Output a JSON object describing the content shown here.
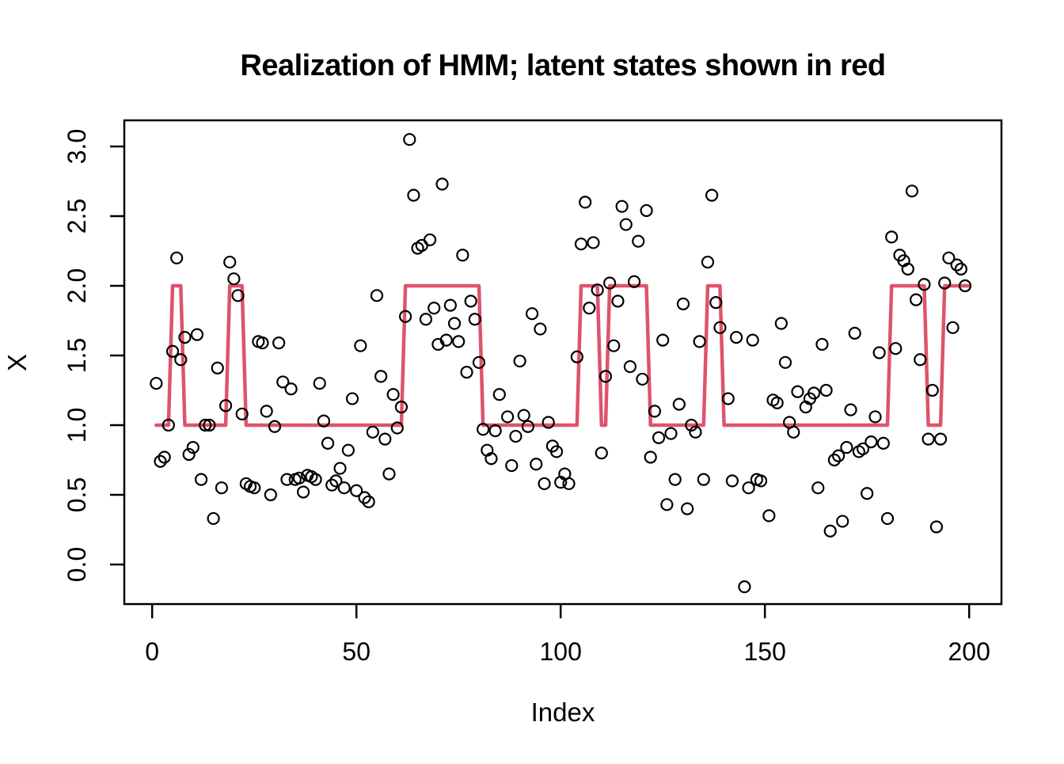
{
  "figure": {
    "background_color": "#ffffff",
    "point_color": "#000000",
    "state_line_color": "#DF536B"
  },
  "chart_data": {
    "type": "scatter",
    "title": "Realization of HMM; latent states shown in red",
    "xlabel": "Index",
    "ylabel": "X",
    "grid": false,
    "legend": "none",
    "xlim": [
      -6.8,
      207.9
    ],
    "ylim": [
      -0.28,
      3.19
    ],
    "x_ticks": [
      0,
      50,
      100,
      150,
      200
    ],
    "x_tick_labels": [
      "0",
      "50",
      "100",
      "150",
      "200"
    ],
    "y_ticks": [
      0,
      0.5,
      1,
      1.5,
      2,
      2.5,
      3
    ],
    "y_tick_labels": [
      "0.0",
      "0.5",
      "1.0",
      "1.5",
      "2.0",
      "2.5",
      "3.0"
    ],
    "series": [
      {
        "name": "observations",
        "type": "scatter",
        "marker": "open-circle",
        "color": "#000000",
        "x_start": 1,
        "note": "y values read off plot; null = point hidden under overlapping ink",
        "y": [
          1.3,
          0.74,
          0.77,
          1.0,
          1.53,
          2.2,
          1.47,
          1.63,
          0.79,
          0.84,
          1.65,
          0.61,
          1.0,
          1.0,
          0.33,
          1.41,
          0.55,
          1.14,
          2.17,
          2.05,
          1.93,
          1.08,
          0.58,
          0.56,
          0.55,
          1.6,
          1.59,
          1.1,
          0.5,
          0.99,
          1.59,
          1.31,
          0.61,
          1.26,
          0.61,
          0.62,
          0.52,
          0.64,
          0.63,
          0.61,
          1.3,
          1.03,
          0.87,
          0.57,
          0.6,
          0.69,
          0.55,
          0.82,
          1.19,
          0.53,
          1.57,
          0.48,
          0.45,
          0.95,
          1.93,
          1.35,
          0.9,
          0.65,
          1.22,
          0.98,
          1.13,
          1.78,
          3.05,
          2.65,
          2.27,
          2.29,
          1.76,
          2.33,
          1.84,
          1.58,
          2.73,
          1.61,
          1.86,
          1.73,
          1.6,
          2.22,
          1.38,
          1.89,
          1.76,
          1.45,
          0.97,
          0.82,
          0.76,
          0.96,
          1.22,
          null,
          1.06,
          0.71,
          0.92,
          1.46,
          1.07,
          0.99,
          1.8,
          0.72,
          1.69,
          0.58,
          1.02,
          0.85,
          0.81,
          0.59,
          0.65,
          0.58,
          null,
          1.49,
          2.3,
          2.6,
          1.84,
          2.31,
          1.97,
          0.8,
          1.35,
          2.02,
          1.57,
          1.89,
          2.57,
          2.44,
          1.42,
          2.03,
          2.32,
          1.33,
          2.54,
          0.77,
          1.1,
          0.91,
          1.61,
          0.43,
          0.94,
          0.61,
          1.15,
          1.87,
          0.4,
          1.0,
          0.95,
          1.6,
          0.61,
          2.17,
          2.65,
          1.88,
          1.7,
          null,
          1.19,
          0.6,
          1.63,
          null,
          -0.16,
          0.55,
          1.61,
          0.61,
          0.6,
          null,
          0.35,
          1.18,
          1.16,
          1.73,
          1.45,
          1.02,
          0.95,
          1.24,
          null,
          1.13,
          1.19,
          1.23,
          0.55,
          1.58,
          1.25,
          0.24,
          0.75,
          0.78,
          0.31,
          0.84,
          1.11,
          1.66,
          0.81,
          0.83,
          0.51,
          0.88,
          1.06,
          1.52,
          0.87,
          0.33,
          2.35,
          1.55,
          2.22,
          2.18,
          2.12,
          2.68,
          1.9,
          1.47,
          2.01,
          0.9,
          1.25,
          0.27,
          0.9,
          2.02,
          2.2,
          1.7,
          2.15,
          2.12,
          2.0,
          null
        ]
      },
      {
        "name": "latent-states",
        "type": "step-line",
        "color": "#DF536B",
        "t_start": 1,
        "t_end": 200,
        "state1_level": 1,
        "state2_level": 2,
        "state2_intervals": [
          [
            5,
            7
          ],
          [
            19,
            22
          ],
          [
            62,
            80
          ],
          [
            105,
            109
          ],
          [
            112,
            121
          ],
          [
            136,
            139
          ],
          [
            181,
            189
          ],
          [
            194,
            200
          ]
        ]
      }
    ]
  }
}
